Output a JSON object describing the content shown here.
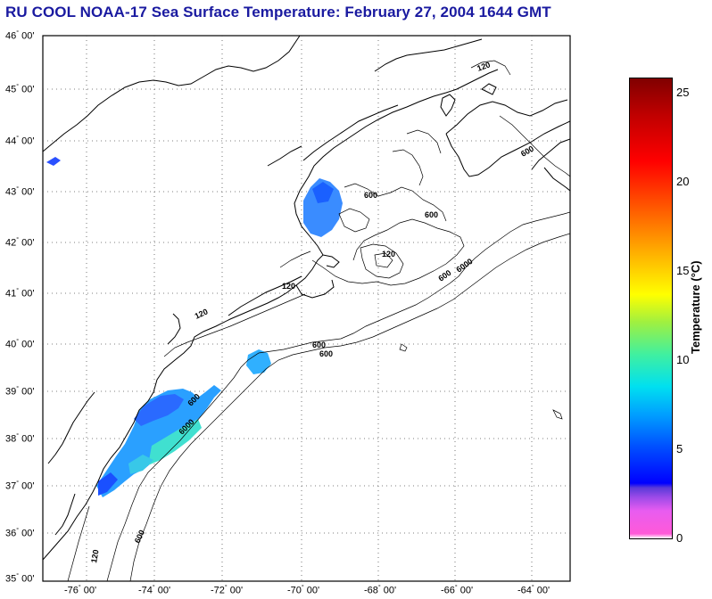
{
  "title": "RU COOL  NOAA-17  Sea Surface Temperature:  February 27, 2004 1644 GMT",
  "lat_labels": [
    {
      "deg": "46",
      "min": "00'"
    },
    {
      "deg": "45",
      "min": "00'"
    },
    {
      "deg": "44",
      "min": "00'"
    },
    {
      "deg": "43",
      "min": "00'"
    },
    {
      "deg": "42",
      "min": "00'"
    },
    {
      "deg": "41",
      "min": "00'"
    },
    {
      "deg": "40",
      "min": "00'"
    },
    {
      "deg": "39",
      "min": "00'"
    },
    {
      "deg": "38",
      "min": "00'"
    },
    {
      "deg": "37",
      "min": "00'"
    },
    {
      "deg": "36",
      "min": "00'"
    },
    {
      "deg": "35",
      "min": "00'"
    }
  ],
  "lon_labels": [
    {
      "deg": "-76",
      "min": "00'"
    },
    {
      "deg": "-74",
      "min": "00'"
    },
    {
      "deg": "-72",
      "min": "00'"
    },
    {
      "deg": "-70",
      "min": "00'"
    },
    {
      "deg": "-68",
      "min": "00'"
    },
    {
      "deg": "-66",
      "min": "00'"
    },
    {
      "deg": "-64",
      "min": "00'"
    }
  ],
  "colorbar": {
    "label": "Temperature (°C)",
    "ticks": [
      "25",
      "20",
      "15",
      "10",
      "5",
      "0"
    ]
  },
  "isobath_labels": [
    "120",
    "600",
    "6000",
    "600",
    "600",
    "120",
    "120",
    "600",
    "6000",
    "600",
    "600",
    "6000",
    "120",
    "600",
    "600",
    "120"
  ],
  "colors": {
    "title": "#1a1aa0",
    "sst_cold": "#2a6aff",
    "sst_mid": "#2ab8ff",
    "sst_warm": "#40e0d0",
    "frame": "#000000"
  }
}
